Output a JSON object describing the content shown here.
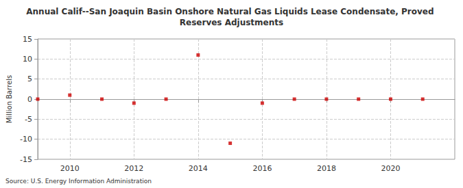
{
  "chart_data": {
    "type": "scatter",
    "title": "Annual Calif--San Joaquin Basin Onshore Natural Gas Liquids Lease Condensate, Proved Reserves Adjustments",
    "y_label": "Million Barrels",
    "source": "Source: U.S. Energy Information Administration",
    "x": [
      2009,
      2010,
      2011,
      2012,
      2013,
      2014,
      2015,
      2016,
      2017,
      2018,
      2019,
      2020,
      2021
    ],
    "values": [
      0,
      1,
      0,
      -1,
      0,
      11,
      -11,
      -1,
      0,
      0,
      0,
      0,
      0
    ],
    "color": "#cc0000",
    "marker": "square",
    "xlim": [
      2009,
      2022
    ],
    "xticks": [
      2010,
      2012,
      2014,
      2016,
      2018,
      2020
    ],
    "ylim": [
      -15,
      15
    ],
    "yticks": [
      -15,
      -10,
      -5,
      0,
      5,
      10,
      15
    ],
    "grid": true
  }
}
